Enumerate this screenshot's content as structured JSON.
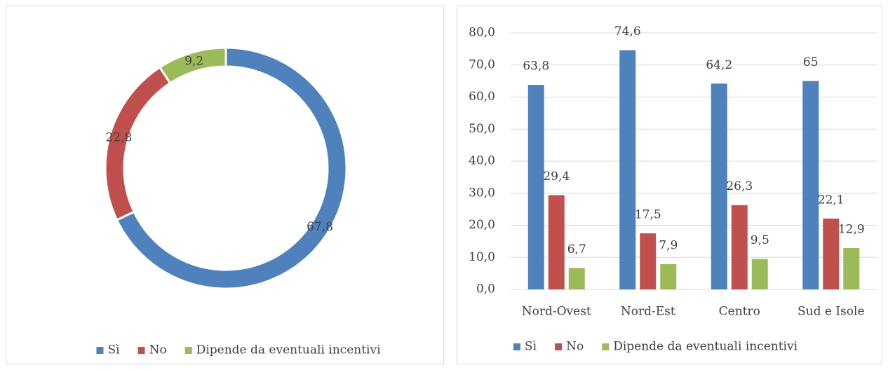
{
  "chart_data": [
    {
      "type": "donut",
      "categories": [
        "Sì",
        "No",
        "Dipende da eventuali incentivi"
      ],
      "values": [
        67.8,
        22.8,
        9.2
      ],
      "value_labels": [
        "67,8",
        "22,8",
        "9,2"
      ],
      "colors": [
        "#4f81bd",
        "#c0504d",
        "#9bbb59"
      ],
      "legend": "bottom"
    },
    {
      "type": "bar",
      "categories": [
        "Nord-Ovest",
        "Nord-Est",
        "Centro",
        "Sud e Isole"
      ],
      "series": [
        {
          "name": "Sì",
          "color": "#4f81bd",
          "values": [
            63.8,
            74.6,
            64.2,
            65
          ],
          "value_labels": [
            "63,8",
            "74,6",
            "64,2",
            "65"
          ]
        },
        {
          "name": "No",
          "color": "#c0504d",
          "values": [
            29.4,
            17.5,
            26.3,
            22.1
          ],
          "value_labels": [
            "29,4",
            "17,5",
            "26,3",
            "22,1"
          ]
        },
        {
          "name": "Dipende da eventuali incentivi",
          "color": "#9bbb59",
          "values": [
            6.7,
            7.9,
            9.5,
            12.9
          ],
          "value_labels": [
            "6,7",
            "7,9",
            "9,5",
            "12,9"
          ]
        }
      ],
      "ylim": [
        0,
        80
      ],
      "yticks": [
        {
          "value": 0,
          "label": "0,0"
        },
        {
          "value": 10,
          "label": "10,0"
        },
        {
          "value": 20,
          "label": "20,0"
        },
        {
          "value": 30,
          "label": "30,0"
        },
        {
          "value": 40,
          "label": "40,0"
        },
        {
          "value": 50,
          "label": "50,0"
        },
        {
          "value": 60,
          "label": "60,0"
        },
        {
          "value": 70,
          "label": "70,0"
        },
        {
          "value": 80,
          "label": "80,0"
        }
      ],
      "grid": true,
      "legend": "bottom"
    }
  ]
}
